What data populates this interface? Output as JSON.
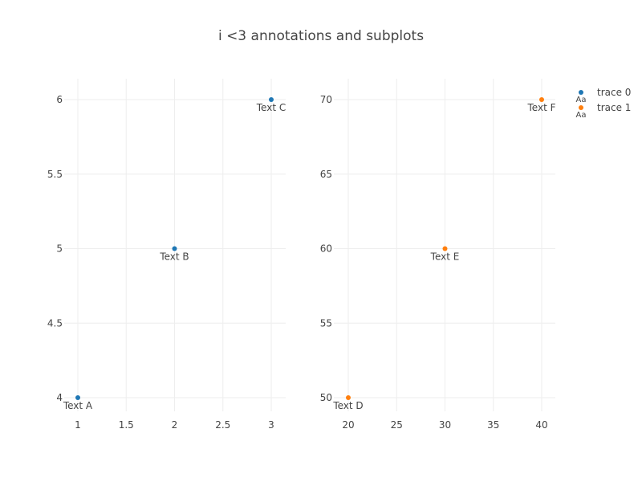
{
  "chart_data": {
    "type": "scatter",
    "title": "i <3 annotations and subplots",
    "legend_position": "top-right",
    "grid": true,
    "subplots": [
      {
        "id": "left",
        "xlim": [
          0.9,
          3.15
        ],
        "ylim": [
          3.92,
          6.15
        ],
        "xticks": [
          1,
          1.5,
          2,
          2.5,
          3
        ],
        "yticks": [
          4,
          4.5,
          5,
          5.5,
          6
        ],
        "series": [
          {
            "name": "trace 0",
            "color": "#1f77b4",
            "points": [
              {
                "x": 1,
                "y": 4,
                "text": "Text A"
              },
              {
                "x": 2,
                "y": 5,
                "text": "Text B"
              },
              {
                "x": 3,
                "y": 6,
                "text": "Text C"
              }
            ]
          }
        ]
      },
      {
        "id": "right",
        "xlim": [
          19,
          41.5
        ],
        "ylim": [
          49.2,
          71.5
        ],
        "xticks": [
          20,
          25,
          30,
          35,
          40
        ],
        "yticks": [
          50,
          55,
          60,
          65,
          70
        ],
        "series": [
          {
            "name": "trace 1",
            "color": "#ff7f0e",
            "points": [
              {
                "x": 20,
                "y": 50,
                "text": "Text D"
              },
              {
                "x": 30,
                "y": 60,
                "text": "Text E"
              },
              {
                "x": 40,
                "y": 70,
                "text": "Text F"
              }
            ]
          }
        ]
      }
    ],
    "legend": {
      "entries": [
        {
          "name": "trace 0",
          "color": "#1f77b4",
          "sample_text": "Aa"
        },
        {
          "name": "trace 1",
          "color": "#ff7f0e",
          "sample_text": "Aa"
        }
      ]
    }
  }
}
